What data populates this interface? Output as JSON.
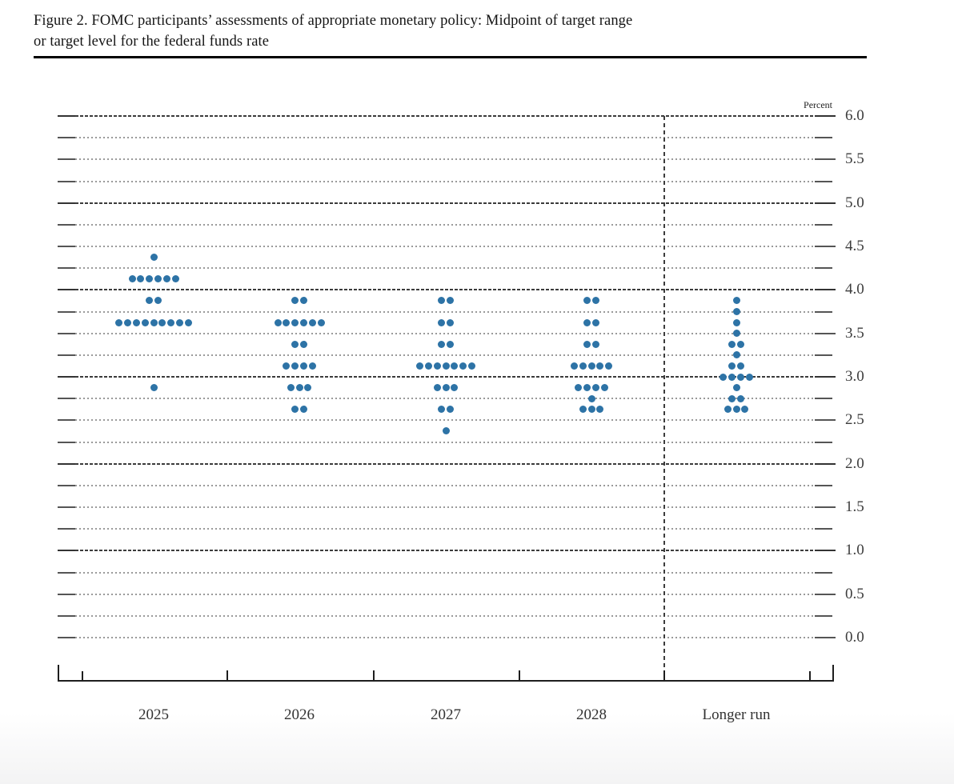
{
  "figure": {
    "title": "Figure 2. FOMC participants’ assessments of appropriate monetary policy: Midpoint of target range\nor target level for the federal funds rate"
  },
  "chart_data": {
    "type": "scatter",
    "subtype": "fomc-dot-plot",
    "title": "FOMC participants’ assessments of appropriate monetary policy: Midpoint of target range or target level for the federal funds rate",
    "ylabel": "Percent",
    "ylim": [
      0.0,
      6.0
    ],
    "ytick_labels": [
      "0.0",
      "0.5",
      "1.0",
      "1.5",
      "2.0",
      "2.5",
      "3.0",
      "3.5",
      "4.0",
      "4.5",
      "5.0",
      "5.5",
      "6.0"
    ],
    "ytick_step": 0.5,
    "grid_step": 0.25,
    "grid": true,
    "legend_position": "none",
    "dot_color": "#2D73A6",
    "categories": [
      "2025",
      "2026",
      "2027",
      "2028",
      "Longer run"
    ],
    "series": [
      {
        "name": "2025",
        "dots": [
          {
            "value": 4.375,
            "count": 1
          },
          {
            "value": 4.125,
            "count": 6
          },
          {
            "value": 3.875,
            "count": 2
          },
          {
            "value": 3.625,
            "count": 9
          },
          {
            "value": 2.875,
            "count": 1
          }
        ]
      },
      {
        "name": "2026",
        "dots": [
          {
            "value": 3.875,
            "count": 2
          },
          {
            "value": 3.625,
            "count": 6
          },
          {
            "value": 3.375,
            "count": 2
          },
          {
            "value": 3.125,
            "count": 4
          },
          {
            "value": 2.875,
            "count": 3
          },
          {
            "value": 2.625,
            "count": 2
          }
        ]
      },
      {
        "name": "2027",
        "dots": [
          {
            "value": 3.875,
            "count": 2
          },
          {
            "value": 3.625,
            "count": 2
          },
          {
            "value": 3.375,
            "count": 2
          },
          {
            "value": 3.125,
            "count": 7
          },
          {
            "value": 2.875,
            "count": 3
          },
          {
            "value": 2.625,
            "count": 2
          },
          {
            "value": 2.375,
            "count": 1
          }
        ]
      },
      {
        "name": "2028",
        "dots": [
          {
            "value": 3.875,
            "count": 2
          },
          {
            "value": 3.625,
            "count": 2
          },
          {
            "value": 3.375,
            "count": 2
          },
          {
            "value": 3.125,
            "count": 5
          },
          {
            "value": 2.875,
            "count": 4
          },
          {
            "value": 2.75,
            "count": 1
          },
          {
            "value": 2.625,
            "count": 3
          }
        ]
      },
      {
        "name": "Longer run",
        "dots": [
          {
            "value": 3.875,
            "count": 1
          },
          {
            "value": 3.75,
            "count": 1
          },
          {
            "value": 3.625,
            "count": 1
          },
          {
            "value": 3.5,
            "count": 1
          },
          {
            "value": 3.375,
            "count": 2
          },
          {
            "value": 3.25,
            "count": 1
          },
          {
            "value": 3.125,
            "count": 2
          },
          {
            "value": 3.0,
            "count": 4
          },
          {
            "value": 2.875,
            "count": 1
          },
          {
            "value": 2.75,
            "count": 2
          },
          {
            "value": 2.625,
            "count": 3
          }
        ]
      }
    ]
  }
}
